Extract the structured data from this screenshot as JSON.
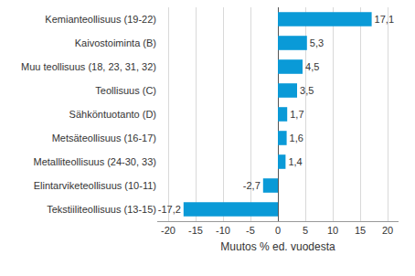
{
  "chart_data": {
    "type": "bar",
    "orientation": "horizontal",
    "categories": [
      "Kemianteollisuus (19-22)",
      "Kaivostoiminta (B)",
      "Muu teollisuus (18, 23, 31, 32)",
      "Teollisuus (C)",
      "Sähköntuotanto (D)",
      "Metsäteollisuus (16-17)",
      "Metalliteollisuus (24-30, 33)",
      "Elintarviketeollisuus (10-11)",
      "Tekstiiliteollisuus (13-15)"
    ],
    "values": [
      17.1,
      5.3,
      4.5,
      3.5,
      1.7,
      1.6,
      1.4,
      -2.7,
      -17.2
    ],
    "value_labels": [
      "17,1",
      "5,3",
      "4,5",
      "3,5",
      "1,7",
      "1,6",
      "1,4",
      "-2,7",
      "-17,2"
    ],
    "data_labels": true,
    "color": "#0a9ad7",
    "xlabel": "Muutos % ed. vuodesta",
    "xlim": [
      -22,
      22
    ],
    "xticks": [
      -20,
      -15,
      -10,
      -5,
      0,
      5,
      10,
      15,
      20
    ],
    "grid": true
  }
}
